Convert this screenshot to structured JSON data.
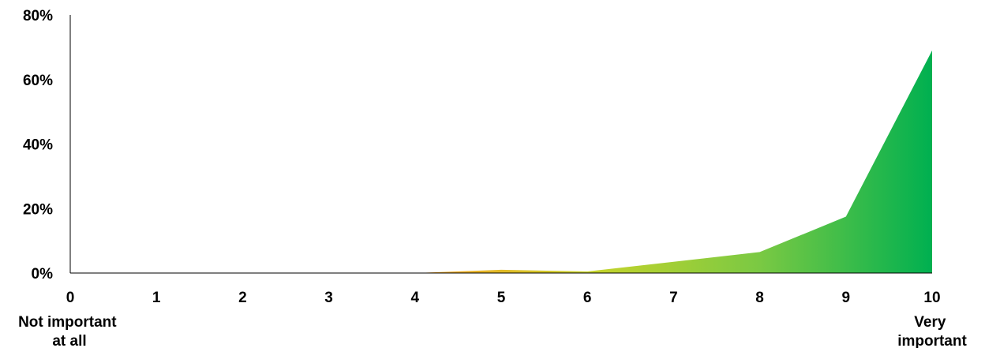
{
  "chart_data": {
    "type": "area",
    "title": "",
    "xlabel": "",
    "ylabel": "",
    "x": [
      0,
      1,
      2,
      3,
      4,
      5,
      6,
      7,
      8,
      9,
      10
    ],
    "x_tick_labels": [
      "0",
      "1",
      "2",
      "3",
      "4",
      "5",
      "6",
      "7",
      "8",
      "9",
      "10"
    ],
    "values": [
      0,
      0,
      0,
      0,
      0,
      1,
      0.5,
      3.5,
      6.5,
      17.5,
      69
    ],
    "ylim": [
      0,
      80
    ],
    "y_tick_labels": [
      "0%",
      "20%",
      "40%",
      "60%",
      "80%"
    ],
    "grid": false,
    "legend": "none",
    "end_labels": {
      "low": [
        "Not important",
        "at all"
      ],
      "high": [
        "Very",
        "important"
      ]
    },
    "gradient_colors": [
      "#f5a623",
      "#c8d42a",
      "#7ac943",
      "#00b050"
    ],
    "axis_color": "#000000"
  }
}
